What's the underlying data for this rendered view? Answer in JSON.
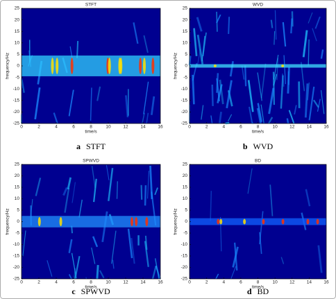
{
  "chart_data": [
    {
      "type": "heatmap",
      "title": "STFT",
      "xlabel": "time/s",
      "ylabel": "frequency/Hz",
      "caption_letter": "a",
      "caption": "STFT",
      "xlim": [
        0,
        16
      ],
      "ylim": [
        -25,
        25
      ],
      "xticks": [
        0,
        2,
        4,
        6,
        8,
        10,
        12,
        14,
        16
      ],
      "yticks": [
        -25,
        -20,
        -15,
        -10,
        -5,
        0,
        5,
        10,
        15,
        20,
        25
      ]
    },
    {
      "type": "heatmap",
      "title": "WVD",
      "xlabel": "time/s",
      "ylabel": "frequency/Hz",
      "caption_letter": "b",
      "caption": "WVD",
      "xlim": [
        0,
        16
      ],
      "ylim": [
        -25,
        25
      ],
      "xticks": [
        0,
        2,
        4,
        6,
        8,
        10,
        12,
        14,
        16
      ],
      "yticks": [
        -25,
        -20,
        -15,
        -10,
        -5,
        0,
        5,
        10,
        15,
        20,
        25
      ]
    },
    {
      "type": "heatmap",
      "title": "SPWVD",
      "xlabel": "time/s",
      "ylabel": "frequency/Hz",
      "caption_letter": "c",
      "caption": "SPWVD",
      "xlim": [
        0,
        16
      ],
      "ylim": [
        -25,
        25
      ],
      "xticks": [
        0,
        2,
        4,
        6,
        8,
        10,
        12,
        14,
        16
      ],
      "yticks": [
        -25,
        -20,
        -15,
        -10,
        -5,
        0,
        5,
        10,
        15,
        20,
        25
      ]
    },
    {
      "type": "heatmap",
      "title": "BD",
      "xlabel": "time/s",
      "ylabel": "frequency/Hz",
      "caption_letter": "d",
      "caption": "BD",
      "xlim": [
        0,
        16
      ],
      "ylim": [
        -25,
        25
      ],
      "xticks": [
        0,
        2,
        4,
        6,
        8,
        10,
        12,
        14,
        16
      ],
      "yticks": [
        -25,
        -20,
        -15,
        -10,
        -5,
        0,
        5,
        10,
        15,
        20,
        25
      ]
    }
  ]
}
